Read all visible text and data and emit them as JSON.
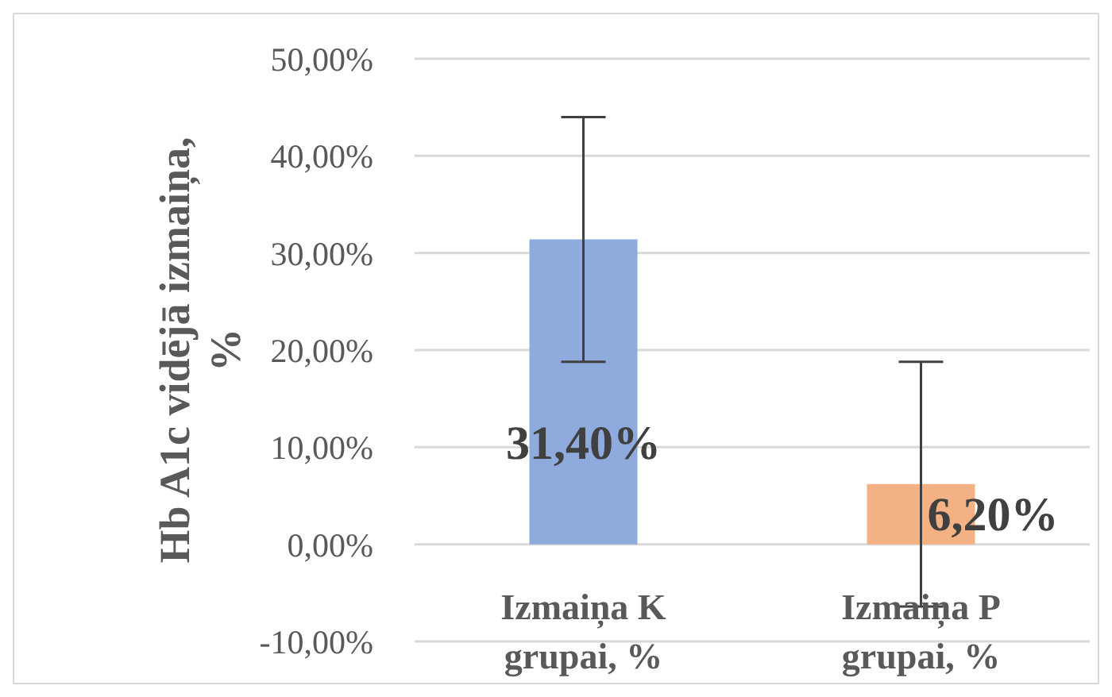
{
  "chart_data": {
    "type": "bar",
    "ylabel": "Hb A1c vidējā izmaiņa, %",
    "categories": [
      "Izmaiņa K grupai, %",
      "Izmaiņa P grupai, %"
    ],
    "values": [
      31.4,
      6.2
    ],
    "colors": [
      "#8faadc",
      "#f4b183"
    ],
    "errors": [
      12.6,
      12.6
    ],
    "value_labels": [
      "31,40%",
      "6,20%"
    ],
    "ylim": [
      -10,
      50
    ],
    "yticks": [
      {
        "value": -10,
        "label": "-10,00%"
      },
      {
        "value": 0,
        "label": "0,00%"
      },
      {
        "value": 10,
        "label": "10,00%"
      },
      {
        "value": 20,
        "label": "20,00%"
      },
      {
        "value": 30,
        "label": "30,00%"
      },
      {
        "value": 40,
        "label": "40,00%"
      },
      {
        "value": 50,
        "label": "50,00%"
      }
    ],
    "grid": "y",
    "legend": false
  }
}
